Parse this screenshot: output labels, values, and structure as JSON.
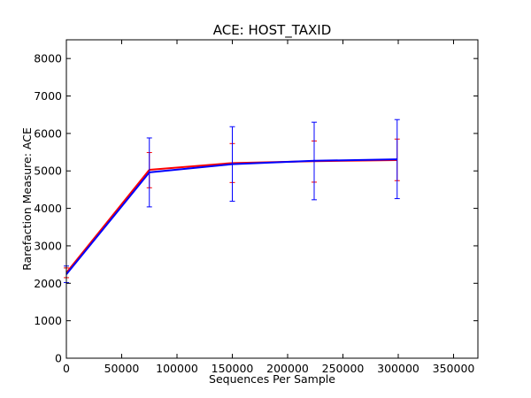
{
  "chart_data": {
    "type": "line",
    "title": "ACE: HOST_TAXID",
    "xlabel": "Sequences Per Sample",
    "ylabel": "Rarefaction Measure: ACE",
    "xlim": [
      0,
      372000
    ],
    "ylim": [
      0,
      8500
    ],
    "xticks": [
      0,
      50000,
      100000,
      150000,
      200000,
      250000,
      300000,
      350000
    ],
    "yticks": [
      0,
      1000,
      2000,
      3000,
      4000,
      5000,
      6000,
      7000,
      8000
    ],
    "grid": false,
    "legend": "none",
    "series": [
      {
        "color": "#ff0000",
        "x": [
          10,
          75000,
          150000,
          224000,
          299000
        ],
        "y": [
          2280,
          5030,
          5210,
          5260,
          5290
        ],
        "err_low": [
          2150,
          4550,
          4690,
          4700,
          4740
        ],
        "err_high": [
          2410,
          5490,
          5730,
          5800,
          5850
        ]
      },
      {
        "color": "#0000ff",
        "x": [
          10,
          75000,
          150000,
          224000,
          299000
        ],
        "y": [
          2240,
          4960,
          5180,
          5270,
          5310
        ],
        "err_low": [
          2020,
          4040,
          4190,
          4230,
          4260
        ],
        "err_high": [
          2460,
          5880,
          6180,
          6300,
          6370
        ]
      }
    ]
  }
}
